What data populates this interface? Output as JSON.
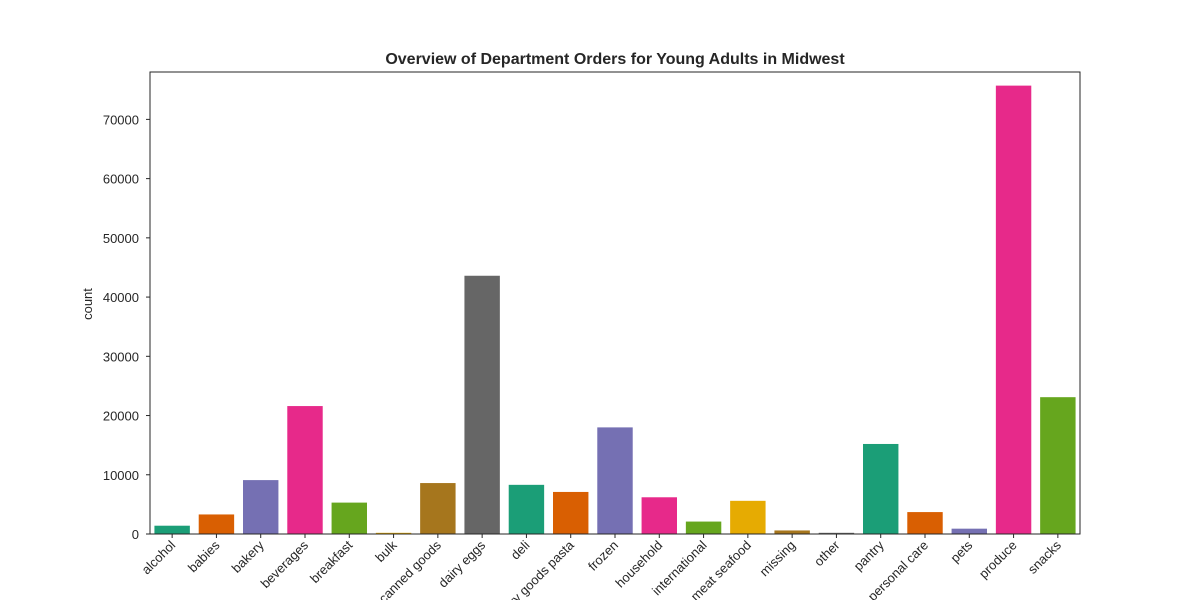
{
  "chart_data": {
    "type": "bar",
    "title": "Overview of Department Orders for Young Adults in Midwest",
    "xlabel": "",
    "ylabel": "count",
    "ylim": [
      0,
      78000
    ],
    "yticks": [
      0,
      10000,
      20000,
      30000,
      40000,
      50000,
      60000,
      70000
    ],
    "grid": false,
    "legend": "none",
    "categories": [
      "alcohol",
      "babies",
      "bakery",
      "beverages",
      "breakfast",
      "bulk",
      "canned goods",
      "dairy eggs",
      "deli",
      "dry goods pasta",
      "frozen",
      "household",
      "international",
      "meat seafood",
      "missing",
      "other",
      "pantry",
      "personal care",
      "pets",
      "produce",
      "snacks"
    ],
    "values": [
      1400,
      3300,
      9100,
      21600,
      5300,
      200,
      8600,
      43600,
      8300,
      7100,
      18000,
      6200,
      2100,
      5600,
      600,
      200,
      15200,
      3700,
      900,
      75700,
      23100
    ],
    "colors": [
      "#1b9e77",
      "#d95f02",
      "#7570b3",
      "#e7298a",
      "#66a61e",
      "#e6ab02",
      "#a6761d",
      "#666666",
      "#1b9e77",
      "#d95f02",
      "#7570b3",
      "#e7298a",
      "#66a61e",
      "#e6ab02",
      "#a6761d",
      "#666666",
      "#1b9e77",
      "#d95f02",
      "#7570b3",
      "#e7298a",
      "#66a61e"
    ]
  }
}
